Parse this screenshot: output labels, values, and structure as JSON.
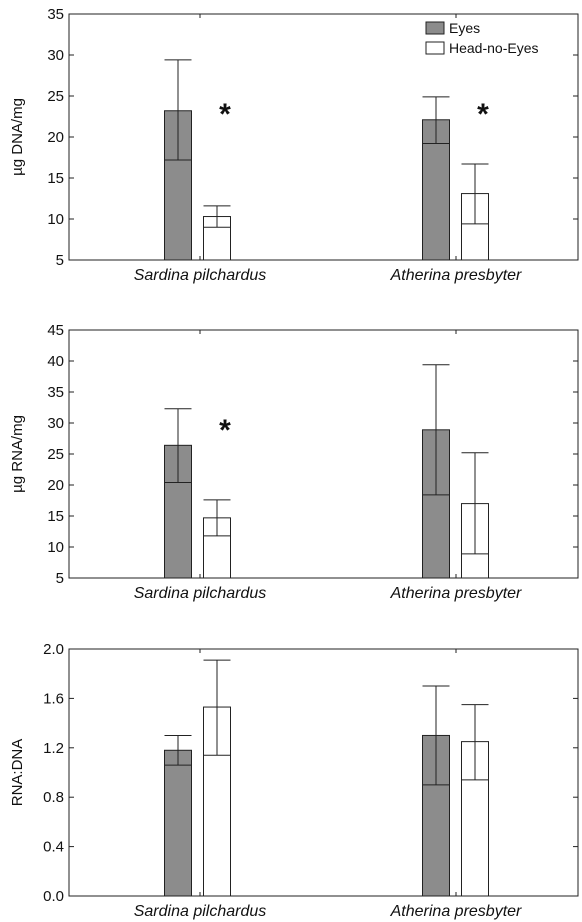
{
  "colors": {
    "eyes": "#8c8c8c",
    "head_no_eyes": "#ffffff",
    "axis": "#222222"
  },
  "legend": {
    "items": [
      {
        "label": "Eyes",
        "color": "#8c8c8c"
      },
      {
        "label": "Head-no-Eyes",
        "color": "#ffffff"
      }
    ]
  },
  "chart_data": [
    {
      "type": "bar",
      "ylabel": "µg DNA/mg",
      "categories": [
        "Sardina pilchardus",
        "Atherina presbyter"
      ],
      "ylim": [
        5,
        35
      ],
      "yticks": [
        5,
        10,
        15,
        20,
        25,
        30,
        35
      ],
      "ytick_labels": [
        "5",
        "10",
        "15",
        "20",
        "25",
        "30",
        "35"
      ],
      "legend": "top-right",
      "series": [
        {
          "name": "Eyes",
          "values": [
            23.2,
            22.1
          ],
          "err_low": [
            17.2,
            19.2
          ],
          "err_high": [
            29.4,
            24.9
          ],
          "significant": [
            false,
            false
          ]
        },
        {
          "name": "Head-no-Eyes",
          "values": [
            10.3,
            13.1
          ],
          "err_low": [
            9.0,
            9.4
          ],
          "err_high": [
            11.6,
            16.7
          ],
          "significant": [
            true,
            true
          ]
        }
      ],
      "significance_marker": "*"
    },
    {
      "type": "bar",
      "ylabel": "µg RNA/mg",
      "categories": [
        "Sardina pilchardus",
        "Atherina presbyter"
      ],
      "ylim": [
        5,
        45
      ],
      "yticks": [
        5,
        10,
        15,
        20,
        25,
        30,
        35,
        40,
        45
      ],
      "ytick_labels": [
        "5",
        "10",
        "15",
        "20",
        "25",
        "30",
        "35",
        "40",
        "45"
      ],
      "series": [
        {
          "name": "Eyes",
          "values": [
            26.4,
            28.9
          ],
          "err_low": [
            20.4,
            18.4
          ],
          "err_high": [
            32.3,
            39.4
          ],
          "significant": [
            false,
            false
          ]
        },
        {
          "name": "Head-no-Eyes",
          "values": [
            14.7,
            17.0
          ],
          "err_low": [
            11.8,
            8.9
          ],
          "err_high": [
            17.6,
            25.2
          ],
          "significant": [
            true,
            false
          ]
        }
      ],
      "significance_marker": "*"
    },
    {
      "type": "bar",
      "ylabel": "RNA:DNA",
      "categories": [
        "Sardina pilchardus",
        "Atherina presbyter"
      ],
      "ylim": [
        0.0,
        2.0
      ],
      "yticks": [
        0.0,
        0.4,
        0.8,
        1.2,
        1.6,
        2.0
      ],
      "ytick_labels": [
        "0.0",
        "0.4",
        "0.8",
        "1.2",
        "1.6",
        "2.0"
      ],
      "series": [
        {
          "name": "Eyes",
          "values": [
            1.18,
            1.3
          ],
          "err_low": [
            1.06,
            0.9
          ],
          "err_high": [
            1.3,
            1.7
          ],
          "significant": [
            false,
            false
          ]
        },
        {
          "name": "Head-no-Eyes",
          "values": [
            1.53,
            1.25
          ],
          "err_low": [
            1.14,
            0.94
          ],
          "err_high": [
            1.91,
            1.55
          ],
          "significant": [
            false,
            false
          ]
        }
      ],
      "significance_marker": "*"
    }
  ]
}
